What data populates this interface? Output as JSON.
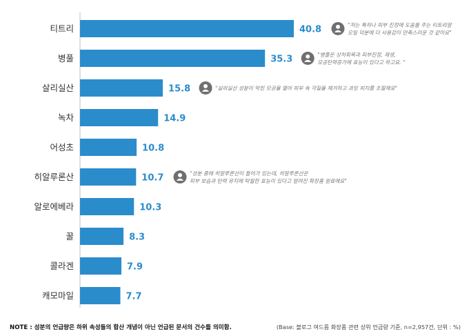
{
  "colors": {
    "bar": "#2b8ccc",
    "value": "#2b8ccc",
    "axis": "#bfbfbf",
    "icon": "#6f6f6f",
    "text": "#333333"
  },
  "chart_data": {
    "type": "bar",
    "orientation": "horizontal",
    "categories": [
      "티트리",
      "병풀",
      "살리실산",
      "녹차",
      "어성초",
      "히알루론산",
      "알로에베라",
      "꿀",
      "콜라겐",
      "캐모마일"
    ],
    "values": [
      40.8,
      35.3,
      15.8,
      14.9,
      10.8,
      10.7,
      10.3,
      8.3,
      7.9,
      7.7
    ],
    "value_labels": [
      "40.8",
      "35.3",
      "15.8",
      "14.9",
      "10.8",
      "10.7",
      "10.3",
      "8.3",
      "7.9",
      "7.7"
    ],
    "xlim": [
      0,
      45
    ],
    "grid": false,
    "annotations": [
      {
        "category": "티트리",
        "icon": "user-icon",
        "lines": [
          "\"저는 특히나 피부 진정에 도움을 주는 티트리알",
          "오일 덕분에 더 사용감이 만족스러운 것 같아요\""
        ]
      },
      {
        "category": "병풀",
        "icon": "user-icon",
        "lines": [
          "\"병풀은 상처회복과 피부진정, 재생,",
          "모공탄력증가에 효능이 있다고 하고요. \""
        ]
      },
      {
        "category": "살리실산",
        "icon": "user-icon",
        "lines": [
          "\"살리실산 성분이 막힌 모공을 열어 피부 속 각질을 제거하고 과잉 피지를 조절해요\""
        ]
      },
      {
        "category": "히알루론산",
        "icon": "user-icon",
        "lines": [
          "\"성분 중에 히알루론산이 들어가 있는데, 히알루론산은",
          "피부 보습과 탄력 유지에 탁월한 효능이 있다고 알려진 화장품 원료에요\""
        ]
      }
    ]
  },
  "footer": {
    "note": "NOTE : 성분의 언급량은 하위 속성들의 합산 개념이 아닌 언급된 문서의 건수를 의미함.",
    "base": "(Base: 블로그 여드름 화장품 관련 상위 언급량 기준, n=2,957건, 단위 : %)"
  }
}
